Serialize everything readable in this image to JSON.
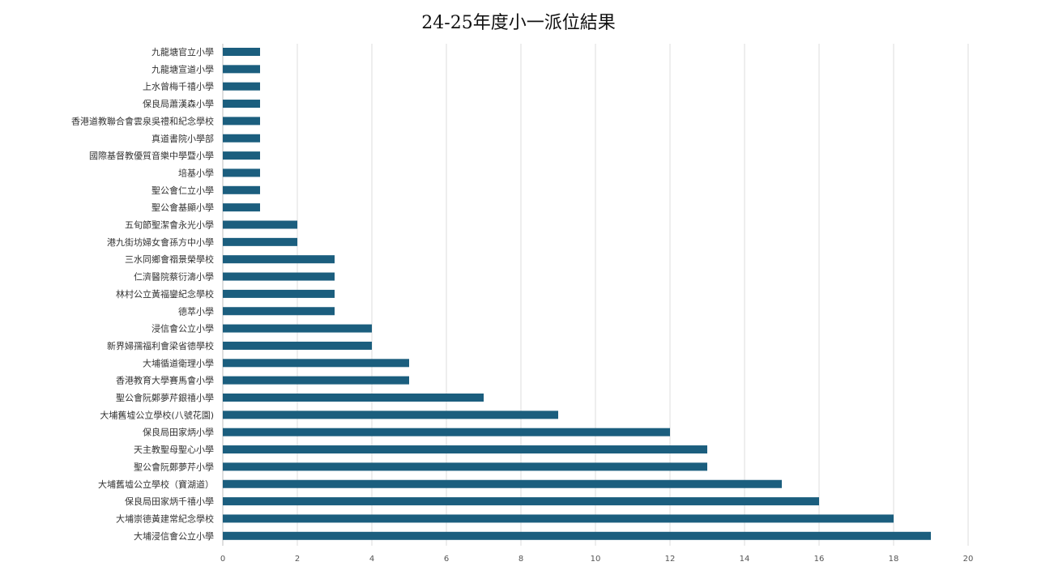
{
  "chart_data": {
    "type": "bar",
    "orientation": "horizontal",
    "title": "24-25年度小一派位結果",
    "xlabel": "",
    "ylabel": "",
    "xlim": [
      0,
      20
    ],
    "xticks": [
      0,
      2,
      4,
      6,
      8,
      10,
      12,
      14,
      16,
      18,
      20
    ],
    "grid": "vertical",
    "legend": "none",
    "colors": {
      "bar": "#1b5e7e",
      "grid": "#dddddd",
      "axis": "#bfbfbf"
    },
    "categories": [
      "九龍塘官立小學",
      "九龍塘宣道小學",
      "上水曾梅千禧小學",
      "保良局蕭漢森小學",
      "香港道教聯合會雲泉吳禮和紀念學校",
      "真道書院小學部",
      "國際基督教優質音樂中學暨小學",
      "培基小學",
      "聖公會仁立小學",
      "聖公會基顯小學",
      "五旬節聖潔會永光小學",
      "港九街坊婦女會孫方中小學",
      "三水同鄉會禤景榮學校",
      "仁濟醫院蔡衍濤小學",
      "林村公立黃福鑾紀念學校",
      "德萃小學",
      "浸信會公立小學",
      "新界婦孺福利會梁省德學校",
      "大埔循道衛理小學",
      "香港教育大學賽馬會小學",
      "聖公會阮鄭夢芹銀禧小學",
      "大埔舊墟公立學校(八號花園)",
      "保良局田家炳小學",
      "天主教聖母聖心小學",
      "聖公會阮鄭夢芹小學",
      "大埔舊墟公立學校（寶湖道）",
      "保良局田家炳千禧小學",
      "大埔崇德黃建常紀念學校",
      "大埔浸信會公立小學"
    ],
    "values": [
      1,
      1,
      1,
      1,
      1,
      1,
      1,
      1,
      1,
      1,
      2,
      2,
      3,
      3,
      3,
      3,
      4,
      4,
      5,
      5,
      7,
      9,
      12,
      13,
      13,
      15,
      16,
      18,
      19
    ]
  }
}
